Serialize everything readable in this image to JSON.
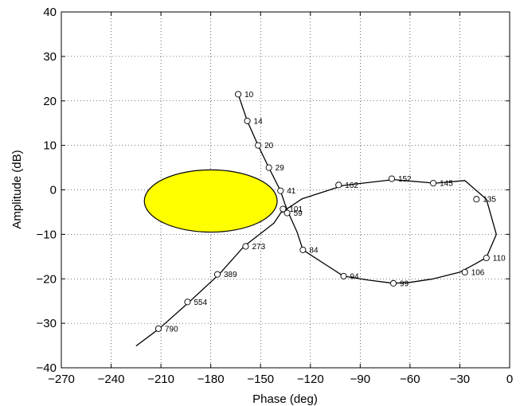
{
  "chart_data": {
    "type": "line",
    "title": "",
    "xlabel": "Phase (deg)",
    "ylabel": "Amplitude (dB)",
    "xlim": [
      -270,
      0
    ],
    "ylim": [
      -40,
      40
    ],
    "xticks": [
      -270,
      -240,
      -210,
      -180,
      -150,
      -120,
      -90,
      -60,
      -30,
      0
    ],
    "xtick_labels": [
      "−270",
      "−240",
      "−210",
      "−180",
      "−150",
      "−120",
      "−90",
      "−60",
      "−30",
      "0"
    ],
    "yticks": [
      -40,
      -30,
      -20,
      -10,
      0,
      10,
      20,
      30,
      40
    ],
    "ytick_labels": [
      "−40",
      "−30",
      "−20",
      "−10",
      "0",
      "10",
      "20",
      "30",
      "40"
    ],
    "grid": true,
    "legend": "none",
    "series": [
      {
        "line_color": "#000000",
        "x": [
          -163.5,
          -158,
          -151.5,
          -145,
          -138,
          -135.5,
          -134,
          -131,
          -128,
          -124.5,
          -110,
          -100,
          -85,
          -70,
          -60,
          -46,
          -30,
          -20,
          -14,
          -8,
          -14,
          -27,
          -45,
          -70,
          -100,
          -125,
          -131,
          -135,
          -136.5,
          -137.5,
          -142,
          -160,
          -175,
          -193,
          -211,
          -225
        ],
        "y": [
          21.5,
          15.5,
          10,
          5,
          -0.2,
          -3,
          -4.5,
          -7,
          -9.5,
          -13.5,
          -17,
          -19.4,
          -20.3,
          -21,
          -20.8,
          -20,
          -18.5,
          -16.5,
          -15.2,
          -10,
          -2.1,
          2.1,
          1.5,
          2.3,
          1,
          -2,
          -3.5,
          -4.5,
          -5,
          -5,
          -7.5,
          -12.7,
          -19,
          -25.2,
          -31.2,
          -35.1
        ]
      }
    ],
    "markers": [
      {
        "label": "10",
        "x": -163.5,
        "y": 21.5
      },
      {
        "label": "14",
        "x": -158,
        "y": 15.5
      },
      {
        "label": "20",
        "x": -151.5,
        "y": 10
      },
      {
        "label": "29",
        "x": -145,
        "y": 5
      },
      {
        "label": "41",
        "x": -138,
        "y": -0.2
      },
      {
        "label": "59",
        "x": -134,
        "y": -5.2
      },
      {
        "label": "84",
        "x": -124.5,
        "y": -13.5
      },
      {
        "label": "94",
        "x": -100,
        "y": -19.4
      },
      {
        "label": "99",
        "x": -70,
        "y": -21
      },
      {
        "label": "106",
        "x": -27,
        "y": -18.5
      },
      {
        "label": "110",
        "x": -14,
        "y": -15.3
      },
      {
        "label": "135",
        "x": -20,
        "y": -2.1
      },
      {
        "label": "145",
        "x": -46,
        "y": 1.5
      },
      {
        "label": "152",
        "x": -71,
        "y": 2.5
      },
      {
        "label": "162",
        "x": -103,
        "y": 1.1
      },
      {
        "label": "101",
        "x": -136.5,
        "y": -4.3
      },
      {
        "label": "273",
        "x": -159,
        "y": -12.7
      },
      {
        "label": "389",
        "x": -176,
        "y": -19
      },
      {
        "label": "554",
        "x": -194,
        "y": -25.2
      },
      {
        "label": "790",
        "x": -211.5,
        "y": -31.2
      }
    ],
    "ellipse": {
      "center": [
        -180,
        -2.5
      ],
      "radius_deg": 40,
      "radius_db": 7,
      "fill": "#ffff00",
      "stroke": "#000000"
    }
  }
}
